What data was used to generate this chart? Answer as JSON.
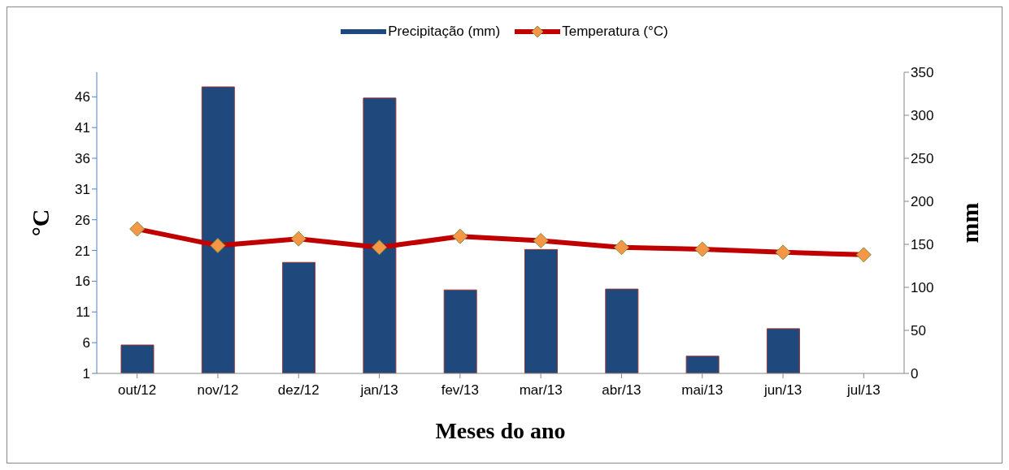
{
  "chart_data": {
    "type": "bar",
    "xlabel": "Meses do ano",
    "ylabel": "°C",
    "y2label": "mm",
    "categories": [
      "out/12",
      "nov/12",
      "dez/12",
      "jan/13",
      "fev/13",
      "mar/13",
      "abr/13",
      "mai/13",
      "jun/13",
      "jul/13"
    ],
    "series": [
      {
        "name": "Precipitação (mm)",
        "axis": "y2",
        "color": "#1f497d",
        "values": [
          33,
          333,
          129,
          320,
          97,
          144,
          98,
          20,
          52,
          null
        ]
      },
      {
        "name": "Temperatura (°C)",
        "type": "line",
        "color": "#c00000",
        "marker": "diamond",
        "values": [
          24.5,
          21.8,
          22.9,
          21.5,
          23.3,
          22.6,
          21.5,
          21.2,
          20.7,
          20.3
        ]
      }
    ],
    "ylim": [
      1,
      50
    ],
    "yticks": [
      1,
      6,
      11,
      16,
      21,
      26,
      31,
      36,
      41,
      46
    ],
    "y2lim": [
      0,
      350
    ],
    "y2ticks": [
      0,
      50,
      100,
      150,
      200,
      250,
      300,
      350
    ],
    "legend": "top",
    "grid": false
  }
}
